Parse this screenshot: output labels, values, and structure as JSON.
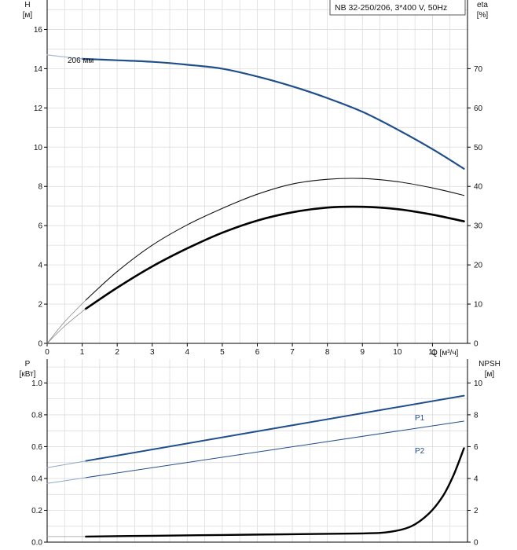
{
  "chart_data": [
    {
      "type": "line",
      "panel": "head-efficiency",
      "title": "NB 32-250/206, 3*400 V, 50Hz",
      "grid": true,
      "legend": "top-right",
      "x_axis": {
        "label": "Q [м³/ч]",
        "range": [
          0,
          12
        ],
        "ticks": [
          0,
          1,
          2,
          3,
          4,
          5,
          6,
          7,
          8,
          9,
          10,
          11
        ]
      },
      "y_left": {
        "label_top": "H",
        "label_unit": "[м]",
        "range": [
          0,
          17.5
        ],
        "ticks": [
          0,
          2,
          4,
          6,
          8,
          10,
          12,
          14,
          16
        ]
      },
      "y_right": {
        "label_top": "eta",
        "label_unit": "[%]",
        "range": [
          0,
          87.5
        ],
        "ticks": [
          0,
          10,
          20,
          30,
          40,
          50,
          60,
          70
        ]
      },
      "annotation": "206 мм",
      "series": [
        {
          "axis": "left",
          "color": "#1f4e8c",
          "width": 2.2,
          "x": [
            1.0,
            2,
            3,
            4,
            5,
            6,
            7,
            8,
            9,
            10,
            11,
            11.9
          ],
          "y": [
            14.5,
            14.43,
            14.35,
            14.2,
            14.0,
            13.6,
            13.1,
            12.5,
            11.8,
            10.9,
            9.9,
            8.9
          ]
        },
        {
          "axis": "left",
          "color": "#a7bbd4",
          "width": 1.2,
          "x": [
            0,
            0.5,
            1.0
          ],
          "y": [
            14.7,
            14.6,
            14.5
          ]
        },
        {
          "axis": "right",
          "color": "#111111",
          "width": 1.1,
          "x": [
            1.1,
            2,
            3,
            4,
            5,
            6,
            7,
            8,
            9,
            10,
            11,
            11.9
          ],
          "y": [
            11,
            18.3,
            25,
            30.2,
            34.4,
            38,
            40.6,
            41.8,
            42.0,
            41.2,
            39.6,
            37.7
          ]
        },
        {
          "axis": "right",
          "color": "#888888",
          "width": 0.8,
          "x": [
            0,
            0.5,
            1.1
          ],
          "y": [
            0,
            5.5,
            11
          ]
        },
        {
          "axis": "right",
          "color": "#000000",
          "width": 2.6,
          "x": [
            1.1,
            2,
            3,
            4,
            5,
            6,
            7,
            8,
            9,
            10,
            11,
            11.9
          ],
          "y": [
            8.8,
            14.2,
            19.6,
            24.2,
            28.2,
            31.3,
            33.4,
            34.6,
            34.8,
            34.2,
            32.8,
            31.1
          ]
        },
        {
          "axis": "right",
          "color": "#888888",
          "width": 0.8,
          "x": [
            0,
            0.5,
            1.1
          ],
          "y": [
            0,
            4.4,
            8.8
          ]
        }
      ]
    },
    {
      "type": "line",
      "panel": "power-npsh",
      "grid": true,
      "x_axis": {
        "range": [
          0,
          12
        ]
      },
      "y_left": {
        "label_top": "P",
        "label_unit": "[кВт]",
        "range": [
          0,
          1.15
        ],
        "ticks": [
          0.0,
          0.2,
          0.4,
          0.6,
          0.8,
          1.0
        ],
        "tick_labels": [
          "0.0",
          "0.2",
          "0.4",
          "0.6",
          "0.8",
          "1.0"
        ]
      },
      "y_right": {
        "label_top": "NPSH",
        "label_unit": "[м]",
        "range": [
          0,
          11.5
        ],
        "ticks": [
          0,
          2,
          4,
          6,
          8,
          10
        ]
      },
      "series": [
        {
          "name": "P1",
          "axis": "left",
          "color": "#1f4e8c",
          "width": 2.0,
          "x": [
            1.1,
            11.9
          ],
          "y": [
            0.51,
            0.92
          ]
        },
        {
          "axis": "left",
          "color": "#8fa9c9",
          "width": 1.0,
          "x": [
            0,
            1.1
          ],
          "y": [
            0.468,
            0.51
          ]
        },
        {
          "name": "P2",
          "axis": "left",
          "color": "#1f4e8c",
          "width": 1.0,
          "x": [
            1.1,
            11.9
          ],
          "y": [
            0.405,
            0.76
          ]
        },
        {
          "axis": "left",
          "color": "#8fa9c9",
          "width": 1.0,
          "x": [
            0,
            1.1
          ],
          "y": [
            0.369,
            0.405
          ]
        },
        {
          "axis": "right",
          "color": "#000000",
          "width": 2.4,
          "x": [
            1.1,
            3,
            5,
            7,
            9,
            9.8,
            10.4,
            10.9,
            11.3,
            11.6,
            11.9
          ],
          "y": [
            0.35,
            0.4,
            0.45,
            0.5,
            0.55,
            0.65,
            1.0,
            1.8,
            2.9,
            4.2,
            5.9
          ]
        },
        {
          "axis": "right",
          "color": "#999999",
          "width": 0.8,
          "x": [
            0,
            1.1
          ],
          "y": [
            0.35,
            0.35
          ]
        }
      ]
    }
  ]
}
